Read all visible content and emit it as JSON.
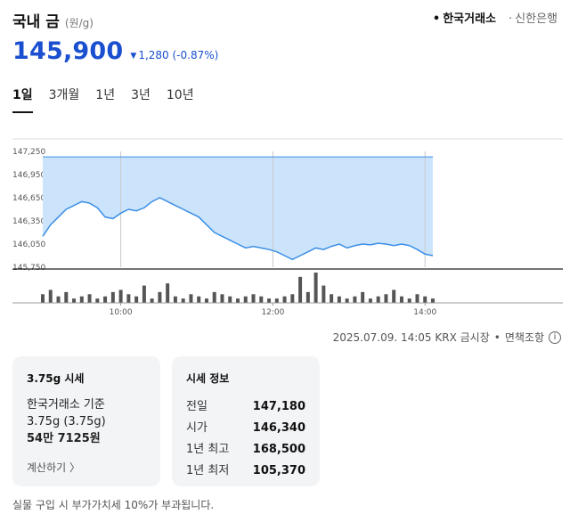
{
  "header": {
    "title": "국내 금",
    "unit": "(원/g)",
    "sources": [
      {
        "label": "한국거래소",
        "active": true
      },
      {
        "label": "신한은행",
        "active": false
      }
    ]
  },
  "price": {
    "current": "145,900",
    "change": "1,280",
    "change_pct": "(-0.87%)",
    "direction": "down"
  },
  "tabs": [
    {
      "label": "1일",
      "active": true
    },
    {
      "label": "3개월",
      "active": false
    },
    {
      "label": "1년",
      "active": false
    },
    {
      "label": "3년",
      "active": false
    },
    {
      "label": "10년",
      "active": false
    }
  ],
  "chart_data": {
    "type": "area",
    "y_ticks": [
      "147,250",
      "146,950",
      "146,650",
      "146,350",
      "146,050",
      "145,750"
    ],
    "y_range": [
      145750,
      147250
    ],
    "x_ticks": [
      "10:00",
      "12:00",
      "14:00"
    ],
    "previous_close": 147180,
    "price_series": [
      146150,
      146300,
      146400,
      146500,
      146550,
      146600,
      146580,
      146520,
      146400,
      146380,
      146450,
      146500,
      146480,
      146520,
      146600,
      146650,
      146600,
      146550,
      146500,
      146450,
      146400,
      146300,
      146200,
      146150,
      146100,
      146050,
      146000,
      146020,
      146000,
      145980,
      145950,
      145900,
      145850,
      145900,
      145950,
      146000,
      145980,
      146020,
      146050,
      146000,
      146030,
      146050,
      146040,
      146060,
      146050,
      146030,
      146050,
      146030,
      145980,
      145920,
      145900
    ],
    "volume": [
      4,
      6,
      3,
      5,
      2,
      3,
      4,
      2,
      3,
      5,
      6,
      4,
      3,
      8,
      2,
      5,
      9,
      3,
      2,
      4,
      3,
      2,
      5,
      4,
      3,
      2,
      3,
      4,
      3,
      2,
      2,
      3,
      4,
      12,
      5,
      14,
      8,
      4,
      3,
      2,
      3,
      5,
      2,
      3,
      4,
      6,
      3,
      2,
      4,
      3,
      2
    ],
    "line_color": "#3a8ee6",
    "fill_color": "#cce4fb",
    "volume_color": "#555555"
  },
  "meta": {
    "timestamp": "2025.07.09. 14:05 KRX 금시장",
    "tax_note": "면책조항",
    "info_icon": "i"
  },
  "card_spot": {
    "title": "3.75g 시세",
    "line1": "한국거래소 기준",
    "line2": "3.75g (3.75g)",
    "line3": "54만 7125원",
    "calc_label": "계산하기 〉"
  },
  "card_info": {
    "title": "시세 정보",
    "rows": [
      {
        "label": "전일",
        "value": "147,180"
      },
      {
        "label": "시가",
        "value": "146,340"
      },
      {
        "label": "1년 최고",
        "value": "168,500"
      },
      {
        "label": "1년 최저",
        "value": "105,370"
      }
    ]
  },
  "footnote": "실물 구입 시 부가가치세 10%가 부과됩니다."
}
